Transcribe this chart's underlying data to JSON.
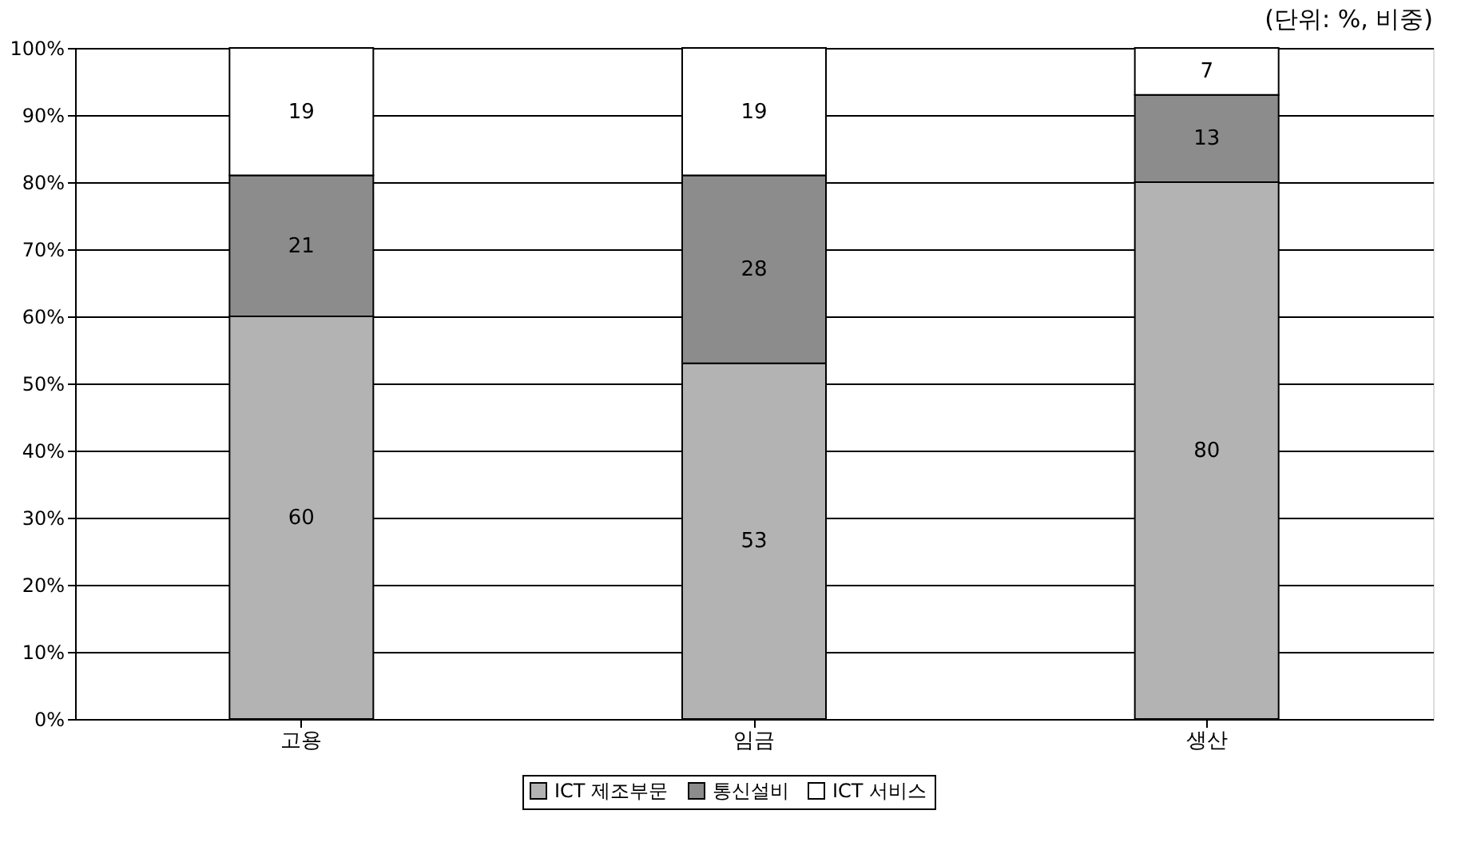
{
  "chart_data": {
    "type": "bar",
    "stacked": true,
    "annotations": [
      "(단위: %, 비중)"
    ],
    "categories": [
      "고용",
      "임금",
      "생산"
    ],
    "series": [
      {
        "name": "ICT 제조부문",
        "color": "#b3b3b3",
        "values": [
          60,
          53,
          80
        ]
      },
      {
        "name": "통신설비",
        "color": "#8c8c8c",
        "values": [
          21,
          28,
          13
        ]
      },
      {
        "name": "ICT 서비스",
        "color": "#ffffff",
        "values": [
          19,
          19,
          7
        ]
      }
    ],
    "ylim": [
      0,
      100
    ],
    "yticks": [
      {
        "value": 0,
        "label": "0%"
      },
      {
        "value": 10,
        "label": "10%"
      },
      {
        "value": 20,
        "label": "20%"
      },
      {
        "value": 30,
        "label": "30%"
      },
      {
        "value": 40,
        "label": "40%"
      },
      {
        "value": 50,
        "label": "50%"
      },
      {
        "value": 60,
        "label": "60%"
      },
      {
        "value": 70,
        "label": "70%"
      },
      {
        "value": 80,
        "label": "80%"
      },
      {
        "value": 90,
        "label": "90%"
      },
      {
        "value": 100,
        "label": "100%"
      }
    ],
    "grid": "y",
    "legend": "bottom",
    "data_labels": true
  }
}
